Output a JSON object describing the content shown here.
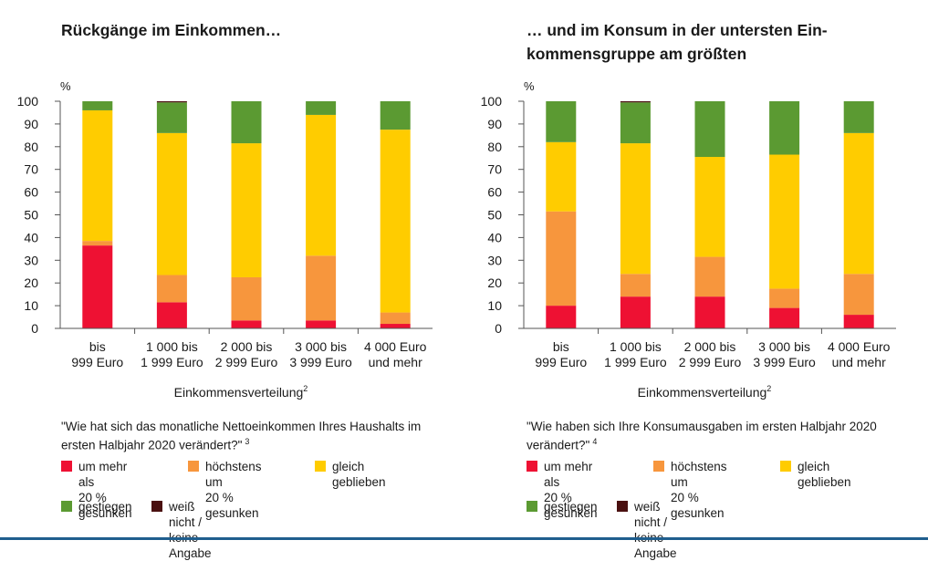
{
  "panels": [
    {
      "title": "Rückgänge im Einkommen…",
      "question": "\"Wie hat sich das monatliche Nettoeinkommen Ihres Haushalts im ersten Halbjahr 2020 verändert?\"",
      "question_footnote": "3"
    },
    {
      "title": "… und im Konsum in der untersten Ein-\nkommensgruppe am größten",
      "question": "\"Wie haben sich Ihre Konsumausgaben im ersten Halbjahr 2020 verändert?\"",
      "question_footnote": "4"
    }
  ],
  "legend": [
    {
      "label": "um mehr als\n20 % gesunken",
      "color": "#ee1133"
    },
    {
      "label": "höchstens um\n20 % gesunken",
      "color": "#f7963d"
    },
    {
      "label": "gleich\ngeblieben",
      "color": "#ffcc00"
    },
    {
      "label": "gestiegen",
      "color": "#5b9a32"
    },
    {
      "label": "weiß nicht / keine Angabe",
      "color": "#4a1010"
    }
  ],
  "chart_data": [
    {
      "type": "bar",
      "stacked": true,
      "title": "Rückgänge im Einkommen…",
      "unit_label": "%",
      "xlabel": "Einkommensverteilung",
      "xlabel_footnote": "2",
      "ylim": [
        0,
        100
      ],
      "yticks": [
        0,
        10,
        20,
        30,
        40,
        50,
        60,
        70,
        80,
        90,
        100
      ],
      "grid": false,
      "categories": [
        "bis\n999 Euro",
        "1 000 bis\n1 999 Euro",
        "2 000 bis\n2 999 Euro",
        "3 000 bis\n3 999 Euro",
        "4 000 Euro\nund mehr"
      ],
      "series": [
        {
          "name": "um mehr als 20 % gesunken",
          "color": "#ee1133",
          "values": [
            36.5,
            11.5,
            3.5,
            3.5,
            2
          ]
        },
        {
          "name": "höchstens um 20 % gesunken",
          "color": "#f7963d",
          "values": [
            2,
            12,
            19,
            28.5,
            5
          ]
        },
        {
          "name": "gleich geblieben",
          "color": "#ffcc00",
          "values": [
            57.5,
            62.5,
            59,
            62,
            80.5
          ]
        },
        {
          "name": "gestiegen",
          "color": "#5b9a32",
          "values": [
            4,
            13.5,
            18.5,
            6,
            12.5
          ]
        },
        {
          "name": "weiß nicht / keine Angabe",
          "color": "#4a1010",
          "values": [
            0,
            0.5,
            0,
            0,
            0
          ]
        }
      ]
    },
    {
      "type": "bar",
      "stacked": true,
      "title": "… und im Konsum in der untersten Einkommensgruppe am größten",
      "unit_label": "%",
      "xlabel": "Einkommensverteilung",
      "xlabel_footnote": "2",
      "ylim": [
        0,
        100
      ],
      "yticks": [
        0,
        10,
        20,
        30,
        40,
        50,
        60,
        70,
        80,
        90,
        100
      ],
      "grid": false,
      "categories": [
        "bis\n999 Euro",
        "1 000 bis\n1 999 Euro",
        "2 000 bis\n2 999 Euro",
        "3 000 bis\n3 999 Euro",
        "4 000 Euro\nund mehr"
      ],
      "series": [
        {
          "name": "um mehr als 20 % gesunken",
          "color": "#ee1133",
          "values": [
            10,
            14,
            14,
            9,
            6
          ]
        },
        {
          "name": "höchstens um 20 % gesunken",
          "color": "#f7963d",
          "values": [
            41.5,
            10,
            17.5,
            8.5,
            18
          ]
        },
        {
          "name": "gleich geblieben",
          "color": "#ffcc00",
          "values": [
            30.5,
            57.5,
            44,
            59,
            62
          ]
        },
        {
          "name": "gestiegen",
          "color": "#5b9a32",
          "values": [
            18,
            18,
            24.5,
            23.5,
            14
          ]
        },
        {
          "name": "weiß nicht / keine Angabe",
          "color": "#4a1010",
          "values": [
            0,
            0.5,
            0,
            0,
            0
          ]
        }
      ]
    }
  ]
}
